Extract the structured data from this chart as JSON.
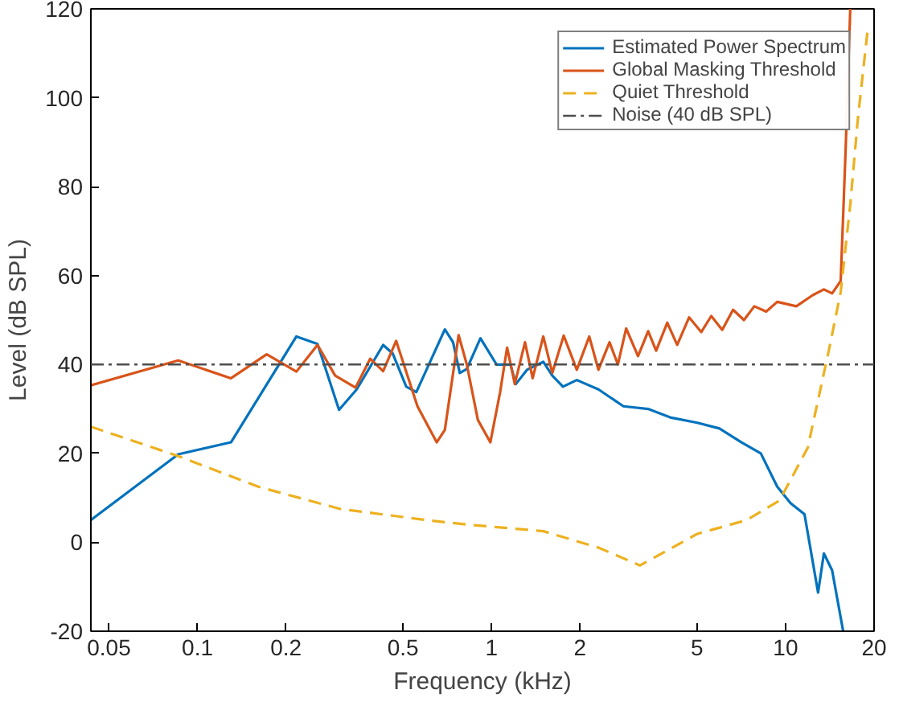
{
  "chart_data": {
    "type": "line",
    "xlabel": "Frequency (kHz)",
    "ylabel": "Level (dB SPL)",
    "log": "x",
    "grid": false,
    "legend": "top right",
    "xlim": [
      0.0434,
      20
    ],
    "ylim": [
      -20,
      120
    ],
    "xticks": [
      0.05,
      0.1,
      0.2,
      0.5,
      1,
      2,
      5,
      10,
      20
    ],
    "yticks": [
      -20,
      0,
      20,
      40,
      60,
      80,
      100,
      120
    ],
    "series": [
      {
        "name": "Estimated Power Spectrum",
        "color": "#0072bd",
        "line_style": "solid",
        "x": [
          0.0434,
          0.086,
          0.13,
          0.217,
          0.256,
          0.303,
          0.348,
          0.428,
          0.461,
          0.513,
          0.555,
          0.694,
          0.74,
          0.78,
          0.824,
          0.917,
          1.04,
          1.16,
          1.21,
          1.32,
          1.5,
          1.61,
          1.75,
          1.95,
          2.31,
          2.81,
          3.41,
          4.05,
          5.01,
          5.96,
          7.08,
          8.24,
          9.37,
          10.4,
          11.6,
          12.9,
          13.5,
          14.4,
          15.7
        ],
        "values": [
          5,
          19.8,
          22.5,
          46.3,
          44.6,
          29.8,
          34.4,
          44.4,
          42.5,
          35,
          33.8,
          47.9,
          45,
          38.1,
          39,
          45.9,
          40,
          40,
          35.6,
          38.8,
          40.6,
          37.5,
          35,
          36.5,
          34.4,
          30.6,
          30,
          28.1,
          26.9,
          25.6,
          22.5,
          20,
          12.5,
          8.8,
          6.3,
          -11.3,
          -2.5,
          -6.3,
          -20
        ]
      },
      {
        "name": "Global Masking Threshold",
        "color": "#d95319",
        "line_style": "solid",
        "x": [
          0.0434,
          0.086,
          0.13,
          0.172,
          0.217,
          0.256,
          0.294,
          0.345,
          0.387,
          0.428,
          0.474,
          0.56,
          0.651,
          0.694,
          0.773,
          0.824,
          0.899,
          0.991,
          1.07,
          1.13,
          1.2,
          1.3,
          1.38,
          1.5,
          1.61,
          1.76,
          1.95,
          2.15,
          2.31,
          2.52,
          2.69,
          2.87,
          3.15,
          3.41,
          3.63,
          3.96,
          4.28,
          4.7,
          5.17,
          5.59,
          6.09,
          6.63,
          7.22,
          7.83,
          8.59,
          9.37,
          10.88,
          12.38,
          13.5,
          14.4,
          15.4,
          16.0,
          16.6
        ],
        "values": [
          35.3,
          40.9,
          36.9,
          42.3,
          38.4,
          44.4,
          37.5,
          34.8,
          41.3,
          38.5,
          45.3,
          30.6,
          22.5,
          25.3,
          46.6,
          40,
          27.5,
          22.5,
          33.8,
          43.8,
          35.6,
          45,
          36.9,
          46.3,
          38.1,
          46.5,
          38.8,
          46.3,
          38.8,
          45,
          40,
          48.1,
          41.9,
          47.5,
          43.1,
          49.4,
          44.4,
          50.6,
          47.3,
          50.9,
          47.8,
          52.3,
          50,
          53.1,
          51.9,
          54.1,
          53.1,
          55.6,
          56.9,
          56,
          58.8,
          88,
          120
        ]
      },
      {
        "name": "Quiet Threshold",
        "color": "#edb120",
        "line_style": "dashed",
        "x": [
          0.0434,
          0.086,
          0.161,
          0.306,
          0.637,
          0.824,
          1.5,
          2.31,
          3.2,
          5.01,
          7.38,
          9.54,
          11.9,
          14.1,
          15.4,
          16.6,
          17.6,
          19.0
        ],
        "values": [
          26,
          19.4,
          12.5,
          7.5,
          4.8,
          4,
          2.5,
          -1.2,
          -5.2,
          1.9,
          5,
          9.4,
          21.3,
          43.8,
          56.3,
          76,
          95,
          115
        ]
      }
    ],
    "ref_lines": [
      {
        "axis": "y",
        "value": 40,
        "label": "Noise (40 dB SPL)",
        "color": "#4d4d4d",
        "line_style": "dashdot"
      }
    ]
  }
}
